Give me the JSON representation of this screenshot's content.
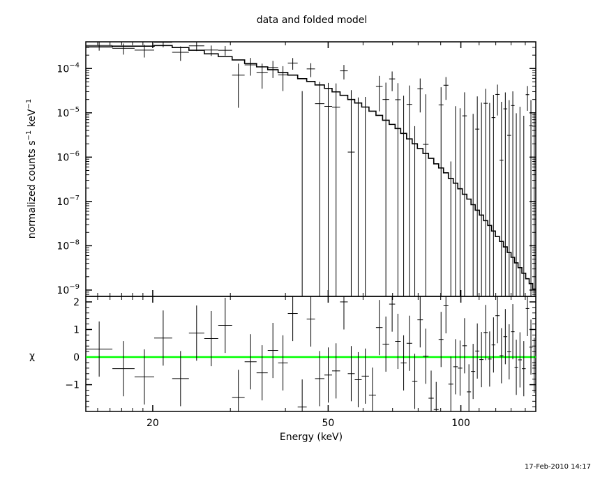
{
  "chart_data": [
    {
      "type": "step-with-errorbars",
      "panel": "top",
      "title": "data and folded model",
      "ylabel": {
        "text": "normalized counts s",
        "exp1": "−1",
        "mid": " keV",
        "exp2": "−1"
      },
      "xscale": "log",
      "yscale": "log",
      "xlim": [
        14.1,
        147.9
      ],
      "ylim": [
        7.2e-10,
        0.0004
      ],
      "ytick_labels": [
        {
          "value": 0.0001,
          "base": "10",
          "exp": "−4"
        },
        {
          "value": 1e-05,
          "base": "10",
          "exp": "−5"
        },
        {
          "value": 1e-06,
          "base": "10",
          "exp": "−6"
        },
        {
          "value": 1e-07,
          "base": "10",
          "exp": "−7"
        },
        {
          "value": 1e-08,
          "base": "10",
          "exp": "−8"
        },
        {
          "value": 1e-09,
          "base": "10",
          "exp": "−9"
        }
      ],
      "bin_edges_keV": [
        14.11,
        16.2,
        18.19,
        20.15,
        22.14,
        24.16,
        26.18,
        28.16,
        30.28,
        32.32,
        34.4,
        36.46,
        38.5,
        40.5,
        42.64,
        44.7,
        46.68,
        49.03,
        51.03,
        53.21,
        55.39,
        57.44,
        59.57,
        61.88,
        64.18,
        66.44,
        68.77,
        70.93,
        73.03,
        75.32,
        77.54,
        79.69,
        82.04,
        84.46,
        86.8,
        89.04,
        91.33,
        93.69,
        96.11,
        98.41,
        100.76,
        103.17,
        105.45,
        107.78,
        110.16,
        112.59,
        115.07,
        117.4,
        119.76,
        122.41,
        124.89,
        127.41,
        129.99,
        132.37,
        134.8,
        137.53,
        140.31,
        142.88,
        145.51,
        147.91
      ],
      "model": [
        0.000308,
        0.00032,
        0.00032,
        0.00033,
        0.000297,
        0.000258,
        0.000215,
        0.000186,
        0.000156,
        0.00013,
        0.000109,
        9.4e-05,
        8.1e-05,
        7.1e-05,
        5.9e-05,
        5.1e-05,
        4.26e-05,
        3.56e-05,
        2.97e-05,
        2.48e-05,
        2e-05,
        1.67e-05,
        1.35e-05,
        1.09e-05,
        8.75e-06,
        6.81e-06,
        5.48e-06,
        4.42e-06,
        3.43e-06,
        2.58e-06,
        2e-06,
        1.56e-06,
        1.21e-06,
        9.4e-07,
        7.05e-07,
        5.69e-07,
        4.42e-07,
        3.31e-07,
        2.58e-07,
        1.93e-07,
        1.45e-07,
        1.13e-07,
        8.45e-08,
        6.34e-08,
        4.92e-08,
        3.69e-08,
        2.87e-08,
        2.15e-08,
        1.61e-08,
        1.25e-08,
        9.4e-09,
        7.05e-09,
        5.48e-09,
        4.11e-09,
        3.2e-09,
        2.4e-09,
        1.8e-09,
        1.4e-09,
        1.05e-09
      ],
      "data": [
        0.00033,
        0.000286,
        0.00026,
        0.000391,
        0.000232,
        0.000325,
        0.000261,
        0.000258,
        7.1e-05,
        0.000121,
        8.2e-05,
        0.000105,
        7.2e-05,
        0.000133,
        -4e-06,
        9.8e-05,
        1.61e-05,
        1.4e-05,
        1.34e-05,
        8.86e-05,
        1.3e-06,
        -8.4e-06,
        -7.2e-06,
        -2.95e-05,
        3.95e-05,
        2e-05,
        5.83e-05,
        1.98e-05,
        -2.1e-06,
        1.55e-05,
        -2.03e-05,
        3.49e-05,
        1.94e-06,
        -3.44e-05,
        -4.34e-05,
        1.51e-05,
        4.19e-05,
        -2.1e-05,
        -7.2e-06,
        -8.2e-06,
        8.55e-06,
        -2.51e-05,
        -1.01e-05,
        4.29e-06,
        -1.69e-06,
        1.64e-05,
        -1.26e-06,
        7.8e-06,
        2.6e-05,
        8.5e-07,
        1.23e-05,
        3.1e-06,
        1.46e-05,
        -5.8e-06,
        -1.5e-06,
        -6.3e-06,
        2.57e-05,
        5.1e-06,
        -4.2e-06
      ],
      "error": [
        7.7e-05,
        8e-05,
        8.3e-05,
        8.9e-05,
        8.3e-05,
        7.7e-05,
        6.9e-05,
        6.3e-05,
        5.8e-05,
        5.2e-05,
        4.7e-05,
        4.4e-05,
        4.1e-05,
        3.9e-05,
        3.5e-05,
        3.4e-05,
        3.4e-05,
        3.33e-05,
        3.26e-05,
        3.19e-05,
        3.12e-05,
        3.06e-05,
        3e-05,
        2.93e-05,
        2.87e-05,
        2.81e-05,
        2.75e-05,
        2.69e-05,
        2.64e-05,
        2.58e-05,
        2.53e-05,
        2.47e-05,
        2.42e-05,
        2.37e-05,
        2.32e-05,
        2.27e-05,
        2.23e-05,
        2.18e-05,
        2.13e-05,
        2.09e-05,
        2.05e-05,
        2e-05,
        1.96e-05,
        1.92e-05,
        1.88e-05,
        1.84e-05,
        1.8e-05,
        1.77e-05,
        1.73e-05,
        1.69e-05,
        1.66e-05,
        1.62e-05,
        1.59e-05,
        1.56e-05,
        1.52e-05,
        1.49e-05,
        1.46e-05,
        1.43e-05,
        1.4e-05
      ]
    },
    {
      "type": "errorbars",
      "panel": "bottom",
      "ylabel": "χ",
      "xlabel": "Energy (keV)",
      "xscale": "log",
      "xlim": [
        14.1,
        147.9
      ],
      "ylim": [
        -1.97,
        2.2
      ],
      "xtick_labels": [
        {
          "value": 20,
          "label": "20"
        },
        {
          "value": 50,
          "label": "50"
        },
        {
          "value": 100,
          "label": "100"
        }
      ],
      "ytick_labels": [
        {
          "value": 2,
          "label": "2"
        },
        {
          "value": 1,
          "label": "1"
        },
        {
          "value": 0,
          "label": "0"
        },
        {
          "value": -1,
          "label": "−1"
        }
      ],
      "residuals": [
        0.29,
        -0.42,
        -0.72,
        0.69,
        -0.78,
        0.87,
        0.67,
        1.15,
        -1.46,
        -0.17,
        -0.57,
        0.24,
        -0.21,
        1.58,
        -1.81,
        1.38,
        -0.78,
        -0.65,
        -0.5,
        2.0,
        -0.6,
        -0.82,
        -0.69,
        -1.38,
        1.07,
        0.47,
        1.92,
        0.57,
        -0.21,
        0.5,
        -0.88,
        1.35,
        0.03,
        -1.49,
        -1.9,
        0.64,
        1.86,
        -0.98,
        -0.35,
        -0.4,
        0.41,
        -1.26,
        -0.52,
        0.22,
        -0.09,
        0.89,
        -0.07,
        0.44,
        1.5,
        0.05,
        0.74,
        0.19,
        0.92,
        -0.37,
        -0.1,
        -0.42,
        1.76,
        0.36,
        -0.3
      ],
      "residual_error": 1,
      "zero_line_color": "#00ff00"
    }
  ],
  "timestamp": "17-Feb-2010 14:17"
}
